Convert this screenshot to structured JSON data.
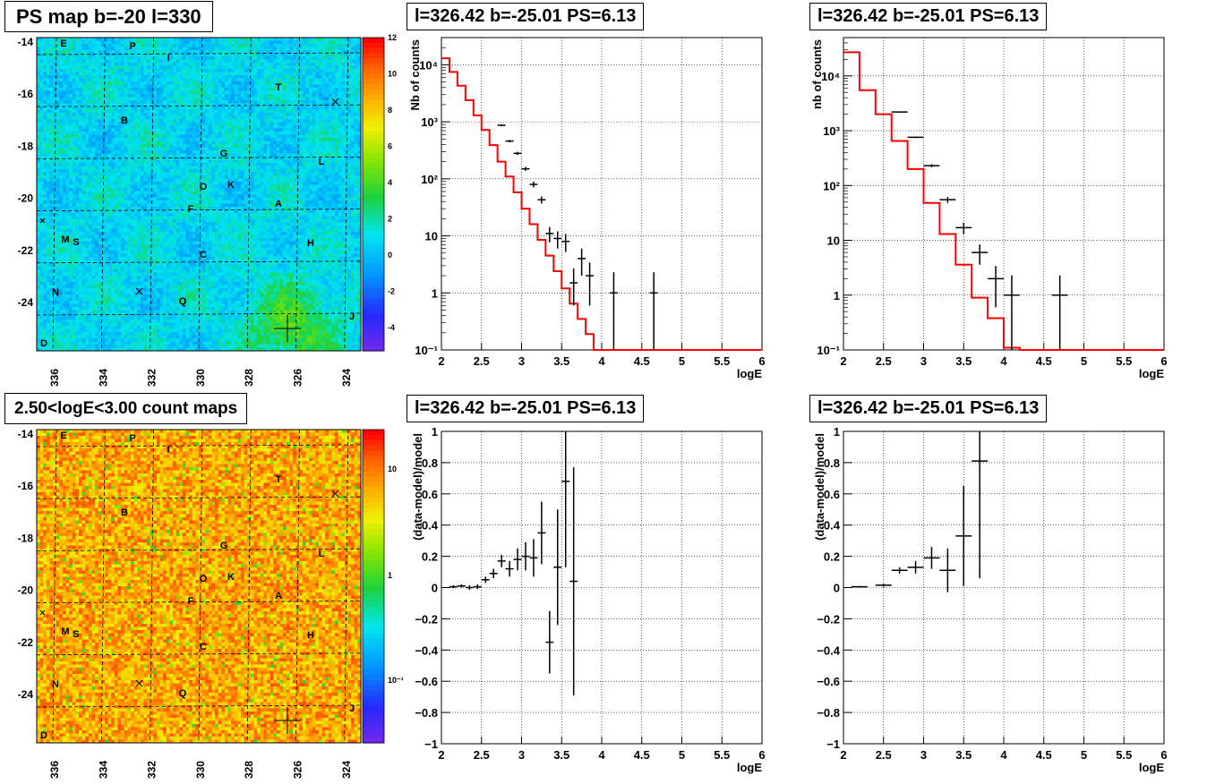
{
  "colors": {
    "model_line": "#ff0000",
    "data": "#000000",
    "grid": "#000000",
    "background": "#ffffff"
  },
  "chart_data": [
    {
      "id": "map-top",
      "type": "heatmap",
      "title": "PS map b=-20 l=330",
      "x_tick_labels": [
        "336",
        "334",
        "332",
        "330",
        "328",
        "326",
        "324"
      ],
      "y_tick_labels": [
        "-14",
        "-16",
        "-18",
        "-20",
        "-22",
        "-24"
      ],
      "xlim": [
        336.6,
        323.4
      ],
      "ylim": [
        -25.8,
        -14
      ],
      "colorbar": {
        "min": -5,
        "max": 12,
        "ticks": [
          "12",
          "10",
          "8",
          "6",
          "4",
          "2",
          "0",
          "-2",
          "-4"
        ]
      },
      "source_labels": [
        "E",
        "P",
        "I",
        "T",
        "B",
        "G",
        "L",
        "O",
        "K",
        "F",
        "A",
        "M",
        "S",
        "H",
        "C",
        "N",
        "Q",
        "J",
        "D"
      ]
    },
    {
      "id": "spectrum-fine",
      "type": "line",
      "title": "l=326.42 b=-25.01 PS=6.13",
      "xlabel": "logE",
      "ylabel": "Nb of counts",
      "xlim": [
        2,
        6
      ],
      "ylim": [
        0.1,
        30000
      ],
      "yscale": "log",
      "x_tick_labels": [
        "2",
        "2.5",
        "3",
        "3.5",
        "4",
        "4.5",
        "5",
        "5.5",
        "6"
      ],
      "y_tick_labels": [
        "10⁴",
        "10³",
        "10²",
        "10",
        "1",
        "10⁻¹"
      ],
      "model_edges": [
        2,
        2.1,
        2.2,
        2.3,
        2.4,
        2.5,
        2.6,
        2.7,
        2.8,
        2.9,
        3,
        3.1,
        3.2,
        3.3,
        3.4,
        3.5,
        3.6,
        3.7,
        3.8,
        3.9,
        4,
        4.1,
        4.2,
        6
      ],
      "model_values": [
        13000,
        7500,
        4300,
        2400,
        1300,
        720,
        390,
        200,
        110,
        58,
        30,
        16,
        8.5,
        4.5,
        2.4,
        1.2,
        0.65,
        0.35,
        0.19,
        0.1,
        0.001,
        0.001,
        0.001
      ],
      "data_x": [
        2.75,
        2.85,
        2.95,
        3.05,
        3.15,
        3.25,
        3.35,
        3.45,
        3.55,
        3.65,
        3.75,
        3.85,
        4.15,
        4.65
      ],
      "data_y": [
        870,
        460,
        280,
        150,
        80,
        43,
        11,
        9,
        8,
        1.5,
        4,
        2,
        1,
        1
      ],
      "data_err_lo": [
        30,
        22,
        17,
        12,
        9,
        6,
        3.3,
        3,
        2.8,
        0.9,
        2,
        1.4,
        0.95,
        0.95
      ],
      "data_err_hi": [
        30,
        22,
        17,
        12,
        9,
        6,
        3.3,
        3,
        2.8,
        1.2,
        2,
        1.4,
        1.3,
        1.3
      ]
    },
    {
      "id": "spectrum-coarse",
      "type": "line",
      "title": "l=326.42 b=-25.01 PS=6.13",
      "xlabel": "logE",
      "ylabel": "nb of counts",
      "xlim": [
        2,
        6
      ],
      "ylim": [
        0.1,
        50000
      ],
      "yscale": "log",
      "x_tick_labels": [
        "2",
        "2.5",
        "3",
        "3.5",
        "4",
        "4.5",
        "5",
        "5.5",
        "6"
      ],
      "y_tick_labels": [
        "10⁴",
        "10³",
        "10²",
        "10",
        "1",
        "10⁻¹"
      ],
      "model_edges": [
        2,
        2.2,
        2.4,
        2.6,
        2.8,
        3,
        3.2,
        3.4,
        3.6,
        3.8,
        4,
        4.2,
        6
      ],
      "model_values": [
        27000,
        5500,
        2000,
        650,
        200,
        48,
        13,
        3.6,
        0.9,
        0.38,
        0.11,
        0.1
      ],
      "data_x": [
        2.7,
        2.9,
        3.1,
        3.3,
        3.5,
        3.7,
        3.9,
        4.1,
        4.7
      ],
      "data_y": [
        2200,
        760,
        230,
        55,
        17,
        6,
        2,
        1,
        1
      ],
      "data_err_lo": [
        47,
        27,
        15,
        7,
        4,
        2.4,
        1.4,
        0.95,
        0.95
      ],
      "data_err_hi": [
        47,
        27,
        15,
        7,
        4,
        2.4,
        1.4,
        1.3,
        1.3
      ]
    },
    {
      "id": "count-map",
      "type": "heatmap",
      "title": "2.50<logE<3.00 count maps",
      "x_tick_labels": [
        "336",
        "334",
        "332",
        "330",
        "328",
        "326",
        "324"
      ],
      "y_tick_labels": [
        "-14",
        "-16",
        "-18",
        "-20",
        "-22",
        "-24"
      ],
      "xlim": [
        336.6,
        323.4
      ],
      "ylim": [
        -25.8,
        -14
      ],
      "colorbar": {
        "scale": "log",
        "ticks": [
          "10",
          "1",
          "10⁻¹"
        ]
      },
      "source_labels": [
        "E",
        "P",
        "I",
        "T",
        "B",
        "G",
        "L",
        "O",
        "K",
        "F",
        "A",
        "M",
        "S",
        "H",
        "C",
        "N",
        "Q",
        "J",
        "D"
      ]
    },
    {
      "id": "residual-fine",
      "type": "scatter",
      "title": "l=326.42 b=-25.01 PS=6.13",
      "xlabel": "logE",
      "ylabel": "(data-model)/model",
      "xlim": [
        2,
        6
      ],
      "ylim": [
        -1,
        1
      ],
      "x_tick_labels": [
        "2",
        "2.5",
        "3",
        "3.5",
        "4",
        "4.5",
        "5",
        "5.5",
        "6"
      ],
      "y_tick_labels": [
        "1",
        "0.8",
        "0.6",
        "0.4",
        "0.2",
        "0",
        "−0.2",
        "−0.4",
        "−0.6",
        "−0.8",
        "−1"
      ],
      "bin_half_width": 0.05,
      "data_x": [
        2.15,
        2.25,
        2.35,
        2.45,
        2.55,
        2.65,
        2.75,
        2.85,
        2.95,
        3.05,
        3.15,
        3.25,
        3.35,
        3.45,
        3.55,
        3.65
      ],
      "data_y": [
        0.005,
        0.01,
        0.0,
        0.005,
        0.05,
        0.09,
        0.17,
        0.12,
        0.18,
        0.2,
        0.19,
        0.35,
        -0.35,
        0.13,
        0.68,
        0.04
      ],
      "data_err": [
        0.01,
        0.01,
        0.015,
        0.015,
        0.02,
        0.03,
        0.04,
        0.05,
        0.07,
        0.09,
        0.12,
        0.2,
        0.2,
        0.37,
        0.55,
        0.73
      ]
    },
    {
      "id": "residual-coarse",
      "type": "scatter",
      "title": "l=326.42 b=-25.01 PS=6.13",
      "xlabel": "logE",
      "ylabel": "(data-model)/model",
      "xlim": [
        2,
        6
      ],
      "ylim": [
        -1,
        1
      ],
      "x_tick_labels": [
        "2",
        "2.5",
        "3",
        "3.5",
        "4",
        "4.5",
        "5",
        "5.5",
        "6"
      ],
      "y_tick_labels": [
        "1",
        "0.8",
        "0.6",
        "0.4",
        "0.2",
        "0",
        "−0.2",
        "−0.4",
        "−0.6",
        "−0.8",
        "−1"
      ],
      "bin_half_width": 0.1,
      "data_x": [
        2.2,
        2.5,
        2.7,
        2.9,
        3.1,
        3.3,
        3.5,
        3.7
      ],
      "data_y": [
        0.005,
        0.015,
        0.11,
        0.13,
        0.19,
        0.11,
        0.33,
        0.81
      ],
      "data_err": [
        0.005,
        0.01,
        0.02,
        0.04,
        0.07,
        0.14,
        0.32,
        0.75
      ]
    }
  ]
}
